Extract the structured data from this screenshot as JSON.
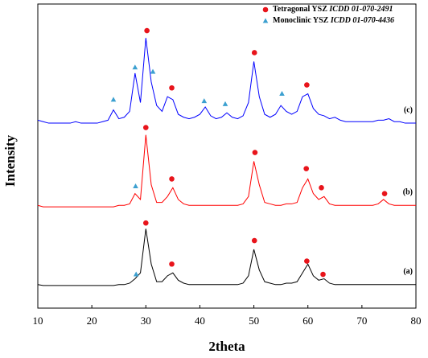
{
  "chart_data": {
    "type": "line",
    "x_label": "2theta",
    "y_label": "Intensity",
    "xlim": [
      10,
      80
    ],
    "ylim": [
      0,
      100
    ],
    "xticks": [
      10,
      20,
      30,
      40,
      50,
      60,
      70,
      80
    ],
    "legend": [
      {
        "label": "Tetragonal YSZ",
        "reference": "ICDD 01-070-2491",
        "marker": "circle",
        "color": "#e8141b"
      },
      {
        "label": "Monoclinic YSZ",
        "reference": "ICDD 01-070-4436",
        "marker": "triangle",
        "color": "#3ca0d0"
      }
    ],
    "x": [
      10,
      11,
      12,
      13,
      14,
      15,
      16,
      17,
      18,
      19,
      20,
      21,
      22,
      23,
      24,
      25,
      26,
      27,
      28,
      29,
      30,
      31,
      32,
      33,
      34,
      35,
      36,
      37,
      38,
      39,
      40,
      41,
      42,
      43,
      44,
      45,
      46,
      47,
      48,
      49,
      50,
      51,
      52,
      53,
      54,
      55,
      56,
      57,
      58,
      59,
      60,
      61,
      62,
      63,
      64,
      65,
      66,
      67,
      68,
      69,
      70,
      71,
      72,
      73,
      74,
      75,
      76,
      77,
      78,
      79,
      80
    ],
    "series": [
      {
        "name": "(c)",
        "color": "#0000ff",
        "values": [
          64,
          63.5,
          63,
          63,
          63,
          63,
          63,
          63.5,
          63,
          63,
          63,
          63,
          63.5,
          64,
          67.5,
          64.5,
          65,
          67,
          80,
          70,
          92,
          77,
          69,
          67,
          72,
          71,
          66,
          65,
          64.5,
          65,
          66,
          68.5,
          65.5,
          64.5,
          65,
          66.5,
          65,
          64.5,
          65.5,
          70,
          84,
          72,
          66,
          65,
          66,
          69,
          67,
          66,
          67,
          72,
          73,
          68,
          66,
          65.5,
          64.5,
          65,
          64,
          63.5,
          63.5,
          63.5,
          63.5,
          63.5,
          63.5,
          64,
          64,
          64.5,
          63.5,
          63.5,
          63,
          63,
          63
        ],
        "tetragonal_peaks": {
          "x": [
            30.2,
            34.8,
            50.1,
            59.8
          ],
          "y": [
            94.5,
            75,
            87,
            76
          ]
        },
        "monoclinic_peaks": {
          "x": [
            24,
            28,
            31.3,
            40.8,
            44.7,
            55.2
          ],
          "y": [
            71,
            82,
            80.5,
            70.5,
            69.5,
            73
          ]
        }
      },
      {
        "name": "(b)",
        "color": "#ff0000",
        "values": [
          35,
          34.5,
          34.5,
          34.5,
          34.5,
          34.5,
          34.5,
          34.5,
          34.5,
          34.5,
          34.5,
          34.5,
          34.5,
          34.5,
          34.5,
          35,
          35,
          35.5,
          39,
          37,
          59,
          42,
          36,
          36,
          38,
          41,
          37,
          35.5,
          35,
          35,
          35,
          35,
          35,
          35,
          35,
          35,
          35,
          35,
          35.5,
          38,
          50,
          42,
          36,
          35.5,
          35,
          35,
          35.5,
          35.5,
          36,
          41,
          44,
          39,
          37,
          38,
          35.5,
          35,
          35,
          35,
          35,
          35,
          35,
          35,
          35,
          35.5,
          37,
          35.5,
          35,
          35,
          35,
          35,
          35
        ],
        "tetragonal_peaks": {
          "x": [
            30,
            34.8,
            50.2,
            59.7,
            62.5,
            74.2
          ],
          "y": [
            61.5,
            44,
            53,
            47.5,
            41,
            39
          ]
        },
        "monoclinic_peaks": {
          "x": [
            28.1
          ],
          "y": [
            41.5
          ]
        }
      },
      {
        "name": "(a)",
        "color": "#000000",
        "values": [
          8,
          7.7,
          7.7,
          7.7,
          7.7,
          7.7,
          7.7,
          7.7,
          7.7,
          7.7,
          7.7,
          7.7,
          7.7,
          7.7,
          7.7,
          8,
          8,
          8.5,
          10,
          12,
          27,
          15,
          9,
          9,
          11,
          12,
          9.5,
          8.5,
          8,
          8,
          8,
          8,
          8,
          8,
          8,
          8,
          8,
          8,
          8.5,
          11,
          20,
          13,
          9,
          8.5,
          8,
          8,
          8.5,
          8.5,
          9,
          12,
          15,
          11,
          9.5,
          10,
          8.5,
          8,
          8,
          8,
          8,
          8,
          8,
          8,
          8,
          8,
          8,
          8,
          8,
          8,
          8,
          8,
          8
        ],
        "tetragonal_peaks": {
          "x": [
            30,
            34.8,
            50.1,
            59.8,
            62.8
          ],
          "y": [
            29,
            15,
            23,
            16,
            11.5
          ]
        },
        "monoclinic_peaks": {
          "x": [
            28.2
          ],
          "y": [
            11.5
          ]
        }
      }
    ]
  }
}
